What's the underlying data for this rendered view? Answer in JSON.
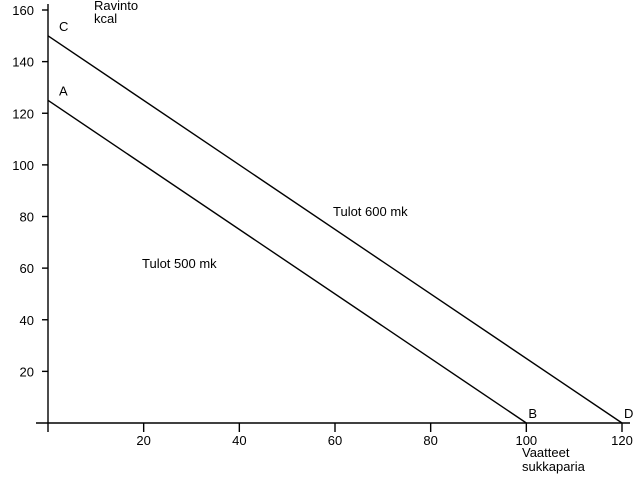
{
  "chart_data": {
    "type": "line",
    "title": "",
    "xlabel": [
      "Vaatteet",
      "sukkaparia"
    ],
    "ylabel": [
      "Ravinto",
      "kcal"
    ],
    "xlim": [
      0,
      120
    ],
    "ylim": [
      0,
      160
    ],
    "x_ticks": [
      20,
      40,
      60,
      80,
      100,
      120
    ],
    "y_ticks": [
      20,
      40,
      60,
      80,
      100,
      120,
      140,
      160
    ],
    "grid": false,
    "series": [
      {
        "name": "Tulot 500 mk",
        "x": [
          0,
          100
        ],
        "y": [
          125,
          0
        ],
        "start_label": "A",
        "end_label": "B"
      },
      {
        "name": "Tulot 600 mk",
        "x": [
          0,
          120
        ],
        "y": [
          150,
          0
        ],
        "start_label": "C",
        "end_label": "D"
      }
    ]
  }
}
